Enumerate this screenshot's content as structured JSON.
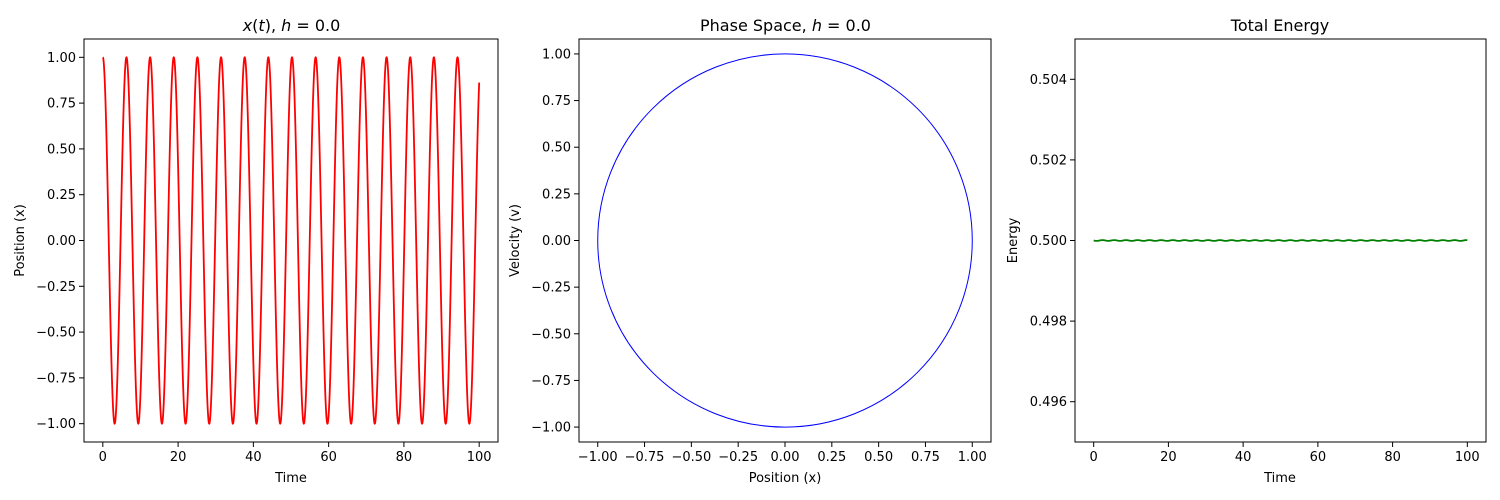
{
  "chart_data": [
    {
      "type": "line",
      "title": "x(t), h = 0.0",
      "title_parts": {
        "var": "x",
        "paren_open": "(",
        "arg": "t",
        "paren_close": ")",
        "sep": ", ",
        "h": "h",
        "eq": " = ",
        "hval": "0.0"
      },
      "xlabel": "Time",
      "ylabel": "Position (x)",
      "xlim": [
        -5,
        105
      ],
      "ylim": [
        -1.1,
        1.1
      ],
      "xticks": [
        0,
        20,
        40,
        60,
        80,
        100
      ],
      "xtick_labels": [
        "0",
        "20",
        "40",
        "60",
        "80",
        "100"
      ],
      "yticks": [
        -1.0,
        -0.75,
        -0.5,
        -0.25,
        0.0,
        0.25,
        0.5,
        0.75,
        1.0
      ],
      "ytick_labels": [
        "−1.00",
        "−0.75",
        "−0.50",
        "−0.25",
        "0.00",
        "0.25",
        "0.50",
        "0.75",
        "1.00"
      ],
      "series": [
        {
          "color": "#ff0000",
          "function": "cos",
          "x_start": 0,
          "x_end": 100,
          "amplitude": 1,
          "omega": 1
        }
      ],
      "grid": false
    },
    {
      "type": "line",
      "title": "Phase Space, h = 0.0",
      "title_parts": {
        "prefix": "Phase Space, ",
        "h": "h",
        "eq": " = ",
        "hval": "0.0"
      },
      "xlabel": "Position (x)",
      "ylabel": "Velocity (v)",
      "xlim": [
        -1.1,
        1.1
      ],
      "ylim": [
        -1.08,
        1.08
      ],
      "xticks": [
        -1.0,
        -0.75,
        -0.5,
        -0.25,
        0.0,
        0.25,
        0.5,
        0.75,
        1.0
      ],
      "xtick_labels": [
        "−1.00",
        "−0.75",
        "−0.50",
        "−0.25",
        "0.00",
        "0.25",
        "0.50",
        "0.75",
        "1.00"
      ],
      "yticks": [
        -1.0,
        -0.75,
        -0.5,
        -0.25,
        0.0,
        0.25,
        0.5,
        0.75,
        1.0
      ],
      "ytick_labels": [
        "−1.00",
        "−0.75",
        "−0.50",
        "−0.25",
        "0.00",
        "0.25",
        "0.50",
        "0.75",
        "1.00"
      ],
      "series": [
        {
          "color": "#0000ff",
          "shape": "circle",
          "radius": 1
        }
      ],
      "grid": false
    },
    {
      "type": "line",
      "title": "Total Energy",
      "xlabel": "Time",
      "ylabel": "Energy",
      "xlim": [
        -5,
        105
      ],
      "ylim": [
        0.495,
        0.505
      ],
      "xticks": [
        0,
        20,
        40,
        60,
        80,
        100
      ],
      "xtick_labels": [
        "0",
        "20",
        "40",
        "60",
        "80",
        "100"
      ],
      "yticks": [
        0.496,
        0.498,
        0.5,
        0.502,
        0.504
      ],
      "ytick_labels": [
        "0.496",
        "0.498",
        "0.500",
        "0.502",
        "0.504"
      ],
      "series": [
        {
          "color": "#008000",
          "function": "constant",
          "value": 0.5,
          "x_start": 0,
          "x_end": 100
        }
      ],
      "grid": false
    }
  ]
}
